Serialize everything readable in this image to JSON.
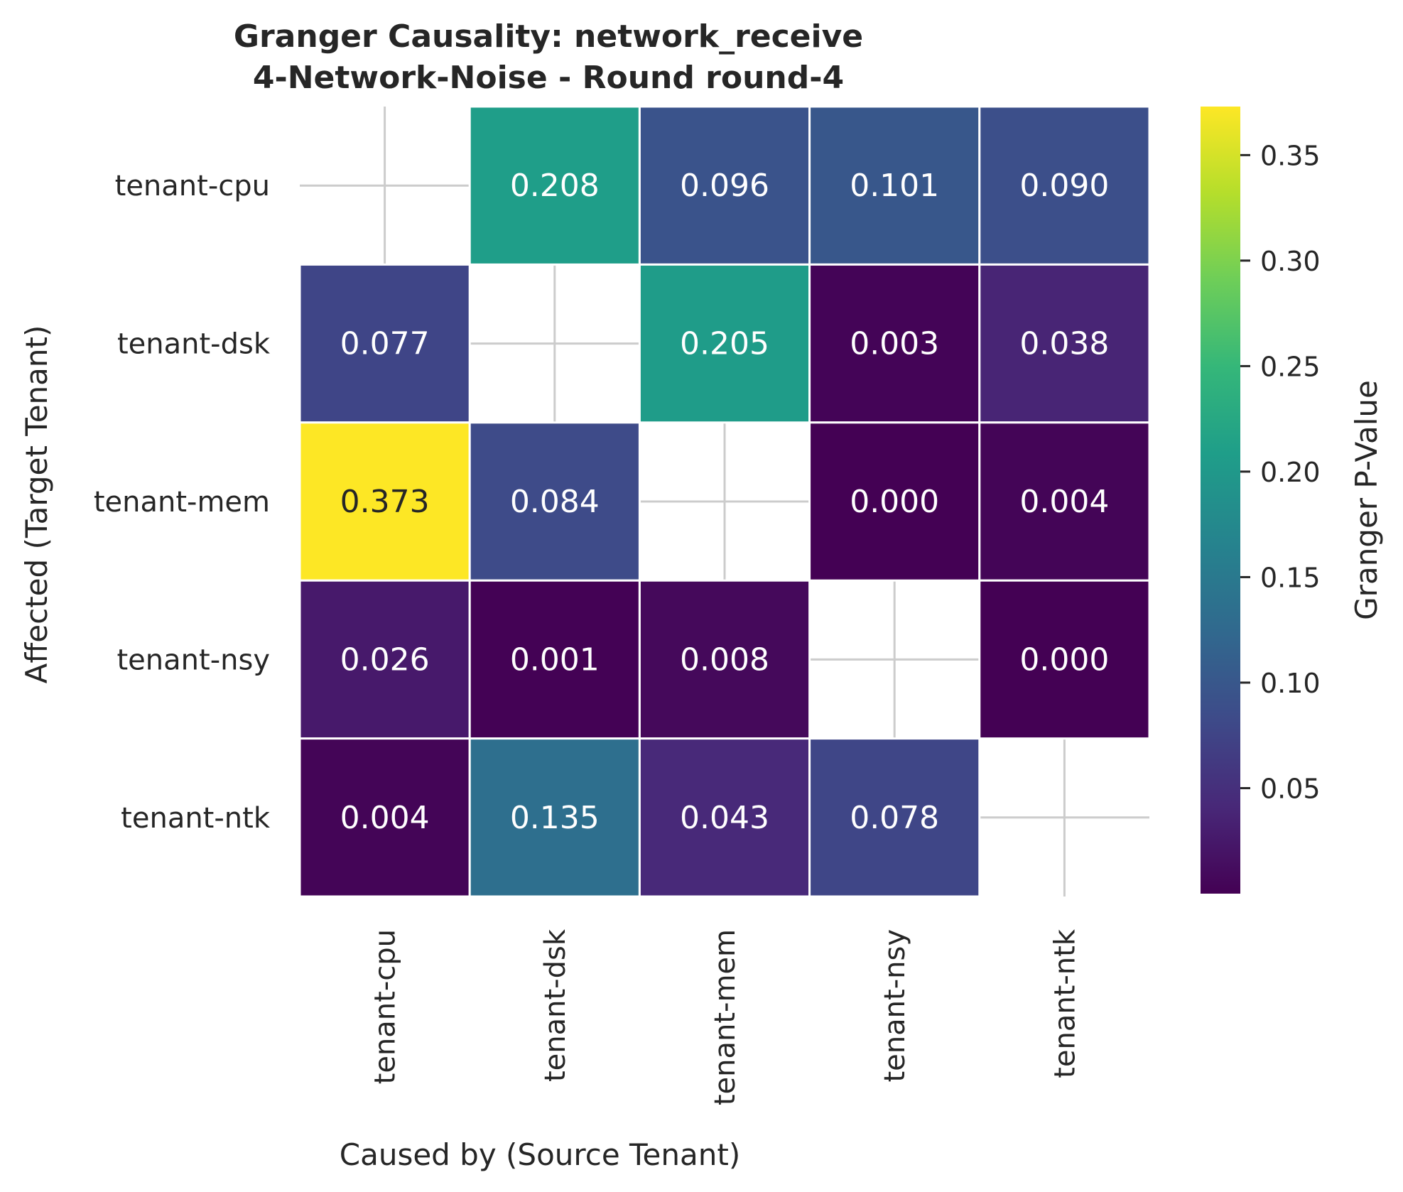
{
  "chart_data": {
    "type": "heatmap",
    "title_line1": "Granger Causality: network_receive",
    "title_line2": "4-Network-Noise - Round round-4",
    "xlabel": "Caused by (Source Tenant)",
    "ylabel": "Affected (Target Tenant)",
    "x_categories": [
      "tenant-cpu",
      "tenant-dsk",
      "tenant-mem",
      "tenant-nsy",
      "tenant-ntk"
    ],
    "y_categories": [
      "tenant-cpu",
      "tenant-dsk",
      "tenant-mem",
      "tenant-nsy",
      "tenant-ntk"
    ],
    "values": [
      [
        null,
        0.208,
        0.096,
        0.101,
        0.09
      ],
      [
        0.077,
        null,
        0.205,
        0.003,
        0.038
      ],
      [
        0.373,
        0.084,
        null,
        0.0,
        0.004
      ],
      [
        0.026,
        0.001,
        0.008,
        null,
        0.0
      ],
      [
        0.004,
        0.135,
        0.043,
        0.078,
        null
      ]
    ],
    "value_format": "3 decimals",
    "colormap": "viridis",
    "colorbar": {
      "label": "Granger P-Value",
      "vmin": 0.0,
      "vmax": 0.373,
      "ticks": [
        0.05,
        0.1,
        0.15,
        0.2,
        0.25,
        0.3,
        0.35
      ],
      "tick_labels": [
        "0.05",
        "0.10",
        "0.15",
        "0.20",
        "0.25",
        "0.30",
        "0.35"
      ]
    },
    "grid": true,
    "diagonal_masked": true
  }
}
